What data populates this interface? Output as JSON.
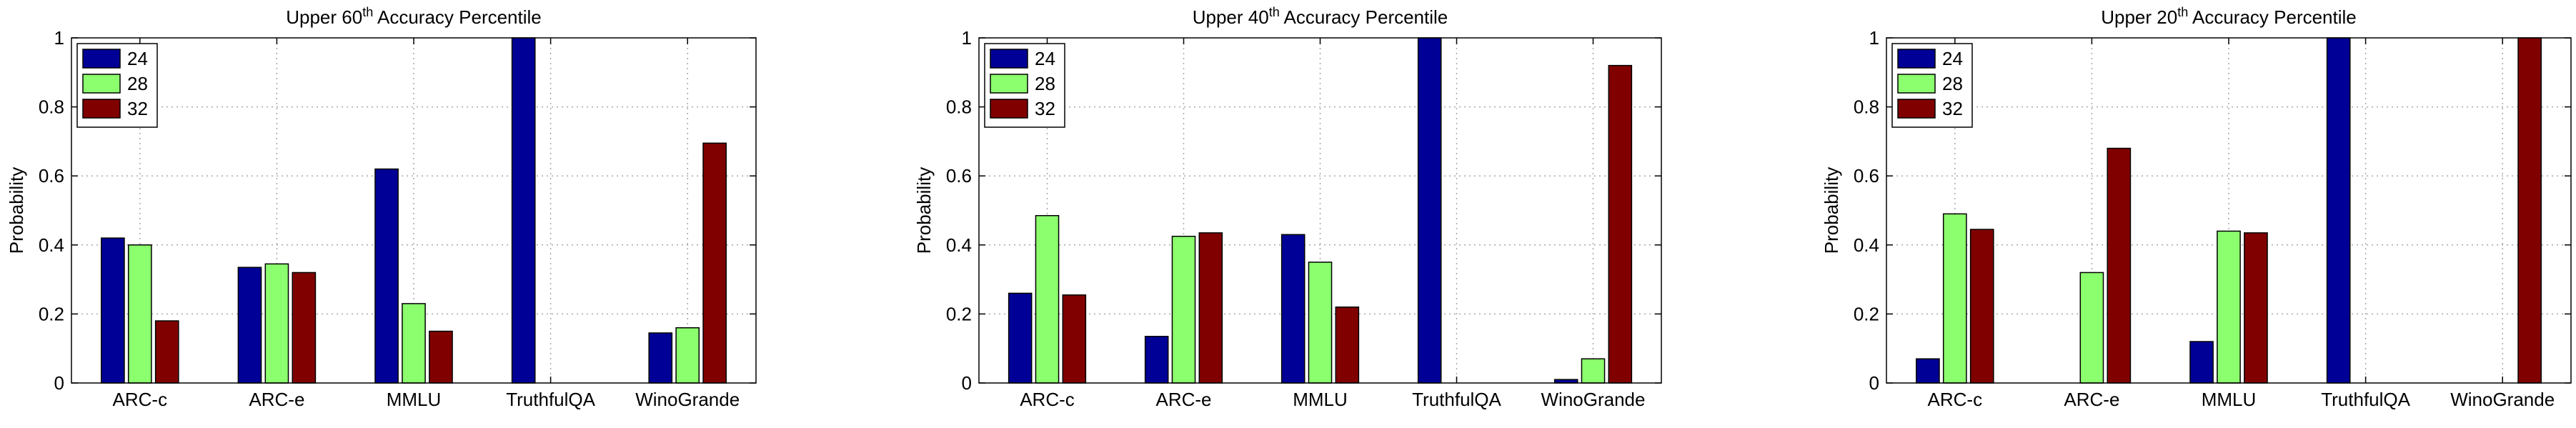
{
  "chart_data": [
    {
      "type": "bar",
      "title": "Upper 60th Accuracy Percentile",
      "title_parts": {
        "pre": "Upper 60",
        "sup": "th",
        "post": " Accuracy Percentile"
      },
      "xlabel": "",
      "ylabel": "Probability",
      "ylim": [
        0,
        1
      ],
      "yticks": [
        "0",
        "0.2",
        "0.4",
        "0.6",
        "0.8",
        "1"
      ],
      "grid": true,
      "legend_position": "top-left",
      "categories": [
        "ARC-c",
        "ARC-e",
        "MMLU",
        "TruthfulQA",
        "WinoGrande"
      ],
      "series": [
        {
          "name": "24",
          "color": "#000096",
          "values": [
            0.42,
            0.335,
            0.62,
            1.0,
            0.145
          ]
        },
        {
          "name": "28",
          "color": "#8cff6e",
          "values": [
            0.4,
            0.345,
            0.23,
            0.0,
            0.16
          ]
        },
        {
          "name": "32",
          "color": "#800000",
          "values": [
            0.18,
            0.32,
            0.15,
            0.0,
            0.695
          ]
        }
      ]
    },
    {
      "type": "bar",
      "title": "Upper 40th Accuracy Percentile",
      "title_parts": {
        "pre": "Upper 40",
        "sup": "th",
        "post": " Accuracy Percentile"
      },
      "xlabel": "",
      "ylabel": "Probability",
      "ylim": [
        0,
        1
      ],
      "yticks": [
        "0",
        "0.2",
        "0.4",
        "0.6",
        "0.8",
        "1"
      ],
      "grid": true,
      "legend_position": "top-left",
      "categories": [
        "ARC-c",
        "ARC-e",
        "MMLU",
        "TruthfulQA",
        "WinoGrande"
      ],
      "series": [
        {
          "name": "24",
          "color": "#000096",
          "values": [
            0.26,
            0.135,
            0.43,
            1.0,
            0.01
          ]
        },
        {
          "name": "28",
          "color": "#8cff6e",
          "values": [
            0.485,
            0.425,
            0.35,
            0.0,
            0.07
          ]
        },
        {
          "name": "32",
          "color": "#800000",
          "values": [
            0.255,
            0.435,
            0.22,
            0.0,
            0.92
          ]
        }
      ]
    },
    {
      "type": "bar",
      "title": "Upper 20th Accuracy Percentile",
      "title_parts": {
        "pre": "Upper 20",
        "sup": "th",
        "post": " Accuracy Percentile"
      },
      "xlabel": "",
      "ylabel": "Probability",
      "ylim": [
        0,
        1
      ],
      "yticks": [
        "0",
        "0.2",
        "0.4",
        "0.6",
        "0.8",
        "1"
      ],
      "grid": true,
      "legend_position": "top-left",
      "categories": [
        "ARC-c",
        "ARC-e",
        "MMLU",
        "TruthfulQA",
        "WinoGrande"
      ],
      "series": [
        {
          "name": "24",
          "color": "#000096",
          "values": [
            0.07,
            0.0,
            0.12,
            1.0,
            0.0
          ]
        },
        {
          "name": "28",
          "color": "#8cff6e",
          "values": [
            0.49,
            0.32,
            0.44,
            0.0,
            0.0
          ]
        },
        {
          "name": "32",
          "color": "#800000",
          "values": [
            0.445,
            0.68,
            0.435,
            0.0,
            1.0
          ]
        }
      ]
    }
  ]
}
